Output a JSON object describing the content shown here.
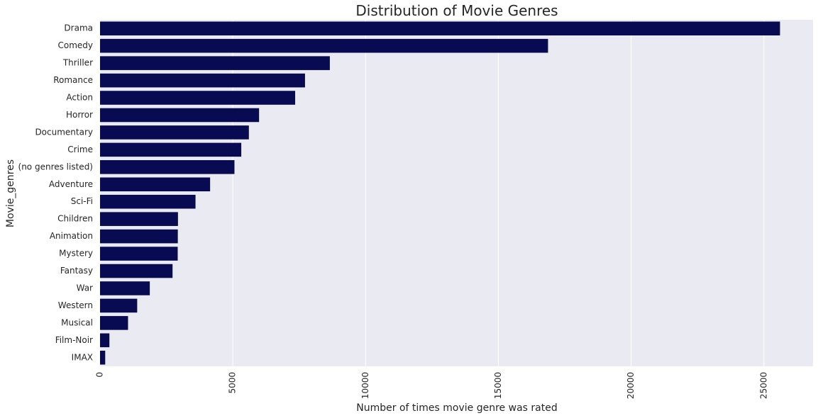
{
  "chart_data": {
    "type": "bar",
    "orientation": "horizontal",
    "title": "Distribution of Movie Genres",
    "xlabel": "Number of times movie genre was rated",
    "ylabel": "Movie_genres",
    "categories": [
      "Drama",
      "Comedy",
      "Thriller",
      "Romance",
      "Action",
      "Horror",
      "Documentary",
      "Crime",
      "(no genres listed)",
      "Adventure",
      "Sci-Fi",
      "Children",
      "Animation",
      "Mystery",
      "Fantasy",
      "War",
      "Western",
      "Musical",
      "Film-Noir",
      "IMAX"
    ],
    "values": [
      25606,
      16870,
      8654,
      7719,
      7348,
      5989,
      5605,
      5319,
      5062,
      4145,
      3595,
      2935,
      2929,
      2925,
      2731,
      1874,
      1399,
      1054,
      353,
      195
    ],
    "xlim": [
      0,
      26850
    ],
    "xticks": [
      "0",
      "5000",
      "10000",
      "15000",
      "20000",
      "25000"
    ],
    "xtick_values": [
      0,
      5000,
      10000,
      15000,
      20000,
      25000
    ],
    "grid": true,
    "colors": {
      "bar": "#080a52",
      "plot_bg": "#eaeaf2",
      "text": "#262626",
      "grid": "#ffffff"
    }
  }
}
